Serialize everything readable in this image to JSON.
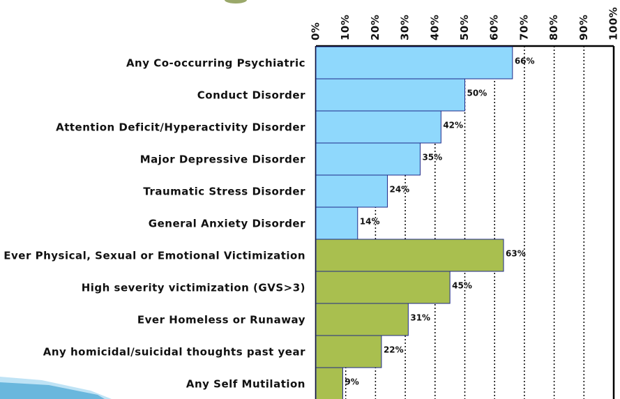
{
  "chart_data": {
    "type": "bar",
    "orientation": "horizontal",
    "categories": [
      "Any Co-occurring Psychiatric",
      "Conduct Disorder",
      "Attention Deficit/Hyperactivity Disorder",
      "Major Depressive Disorder",
      "Traumatic Stress Disorder",
      "General Anxiety Disorder",
      "Ever Physical, Sexual or Emotional Victimization",
      "High severity victimization (GVS>3)",
      "Ever Homeless or Runaway",
      "Any homicidal/suicidal thoughts past year",
      "Any Self Mutilation"
    ],
    "values": [
      66,
      50,
      42,
      35,
      24,
      14,
      63,
      45,
      31,
      22,
      9
    ],
    "value_labels": [
      "66%",
      "50%",
      "42%",
      "35%",
      "24%",
      "14%",
      "63%",
      "45%",
      "31%",
      "22%",
      "9%"
    ],
    "colors": [
      "#8fd8fc",
      "#8fd8fc",
      "#8fd8fc",
      "#8fd8fc",
      "#8fd8fc",
      "#8fd8fc",
      "#a9bf4f",
      "#a9bf4f",
      "#a9bf4f",
      "#a9bf4f",
      "#a9bf4f"
    ],
    "xlim": [
      0,
      100
    ],
    "xticks": [
      {
        "value": 0,
        "label": "0%"
      },
      {
        "value": 10,
        "label": "10%"
      },
      {
        "value": 20,
        "label": "20%"
      },
      {
        "value": 30,
        "label": "30%"
      },
      {
        "value": 40,
        "label": "40%"
      },
      {
        "value": 50,
        "label": "50%"
      },
      {
        "value": 60,
        "label": "60%"
      },
      {
        "value": 70,
        "label": "70%"
      },
      {
        "value": 80,
        "label": "80%"
      },
      {
        "value": 90,
        "label": "90%"
      },
      {
        "value": 100,
        "label": "100%"
      }
    ],
    "grid": true
  }
}
